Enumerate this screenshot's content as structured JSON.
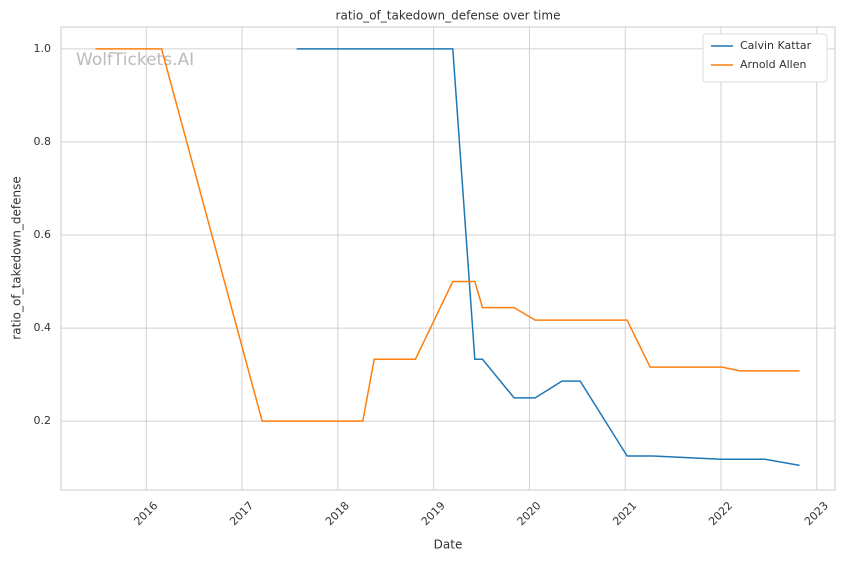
{
  "chart_data": {
    "type": "line",
    "title": "ratio_of_takedown_defense over time",
    "xlabel": "Date",
    "ylabel": "ratio_of_takedown_defense",
    "watermark": "WolfTickets.AI",
    "xlim": [
      2015.11,
      2023.19
    ],
    "xticks": [
      2016,
      2017,
      2018,
      2019,
      2020,
      2021,
      2022,
      2023
    ],
    "ylim": [
      0.052,
      1.047
    ],
    "yticks": [
      0.2,
      0.4,
      0.6,
      0.8,
      {
        "value": 1,
        "label": "1.0"
      }
    ],
    "grid": true,
    "legend": "upper right",
    "series": [
      {
        "name": "Calvin Kattar",
        "color": "#1f77b4",
        "x": [
          2017.57,
          2019.2,
          2019.43,
          2019.51,
          2019.84,
          2020.06,
          2020.34,
          2020.53,
          2021.02,
          2021.29,
          2022.0,
          2022.46,
          2022.82
        ],
        "values": [
          1.0,
          1.0,
          0.333,
          0.333,
          0.25,
          0.25,
          0.286,
          0.286,
          0.125,
          0.125,
          0.118,
          0.118,
          0.105
        ]
      },
      {
        "name": "Arnold Allen",
        "color": "#ff7f0e",
        "x": [
          2015.47,
          2016.16,
          2017.21,
          2018.26,
          2018.38,
          2018.81,
          2019.2,
          2019.43,
          2019.51,
          2019.84,
          2020.06,
          2021.02,
          2021.26,
          2022.01,
          2022.2,
          2022.82
        ],
        "values": [
          1.0,
          1.0,
          0.2,
          0.2,
          0.333,
          0.333,
          0.5,
          0.5,
          0.444,
          0.444,
          0.417,
          0.417,
          0.316,
          0.316,
          0.308,
          0.308
        ]
      }
    ]
  }
}
